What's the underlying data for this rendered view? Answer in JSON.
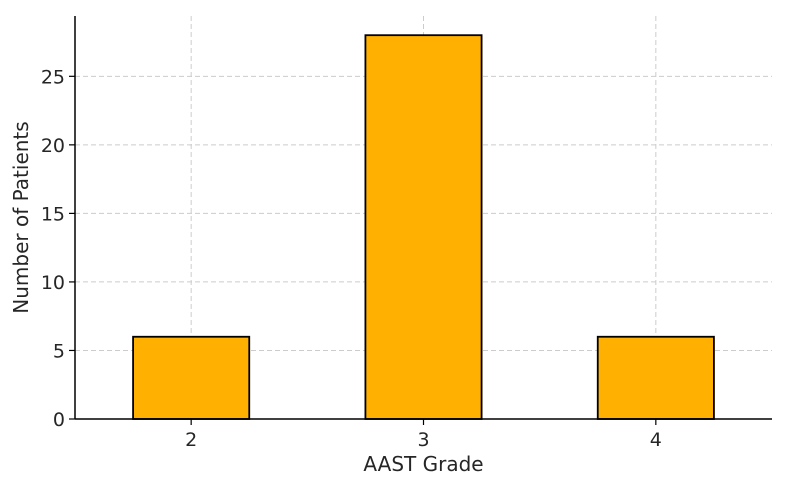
{
  "chart_data": {
    "type": "bar",
    "categories": [
      "2",
      "3",
      "4"
    ],
    "values": [
      6,
      28,
      6
    ],
    "title": "",
    "xlabel": "AAST Grade",
    "ylabel": "Number of Patients",
    "ylim": [
      0,
      29.4
    ],
    "yticks": [
      0,
      5,
      10,
      15,
      20,
      25
    ],
    "grid": true,
    "bar_color": "#FFB000",
    "bar_edge_color": "#000000",
    "grid_color": "#cccccc"
  }
}
